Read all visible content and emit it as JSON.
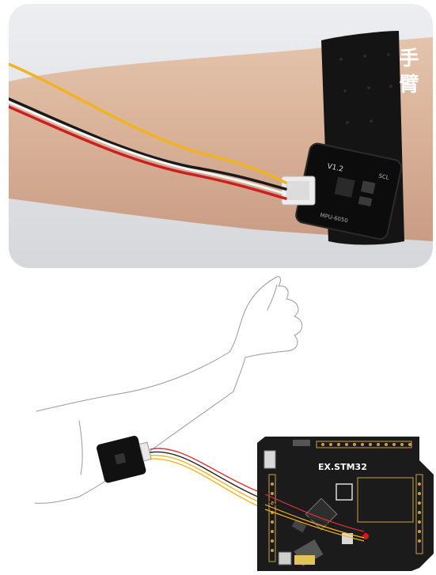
{
  "photo": {
    "arm_label": "手臂",
    "sensor_marking_1": "V1.2",
    "sensor_marking_2": "SCL",
    "sensor_marking_3": "MPU-6050"
  },
  "diagram": {
    "board_label": "EX.STM32"
  },
  "colors": {
    "photo_bg": "#e4e5e9",
    "skin": "#dab7a0",
    "strap": "#141414",
    "wire_yellow": "#f2b320",
    "wire_white": "#f5f5f5",
    "wire_red": "#cc1f1f",
    "wire_black": "#1a1a1a",
    "board": "#1b1b1b",
    "pad_gold": "#c8a04a"
  }
}
